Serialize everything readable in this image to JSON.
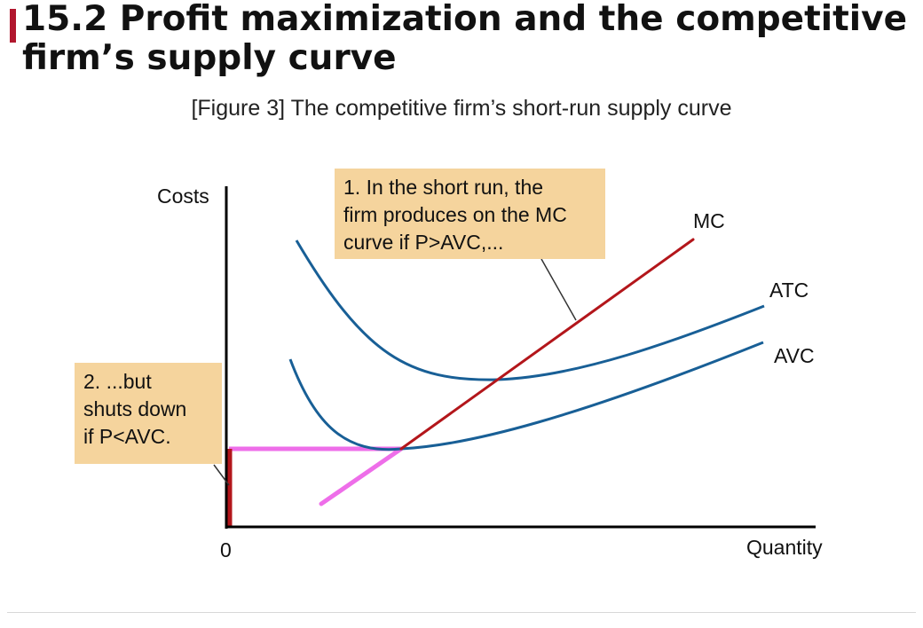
{
  "title": {
    "line1": "15.2 Profit maximization and the competitive",
    "line2": "firm’s supply curve"
  },
  "figure": {
    "caption": "[Figure 3] The competitive firm’s short-run supply curve",
    "y_axis_label": "Costs",
    "x_axis_label": "Quantity",
    "origin_label": "0",
    "curves": {
      "mc": "MC",
      "atc": "ATC",
      "avc": "AVC"
    },
    "callout1": {
      "line1": "1. In the short run, the",
      "line2": "firm produces on the MC",
      "line3": "curve if P>AVC,..."
    },
    "callout2": {
      "line1": "2. ...but",
      "line2": "shuts down",
      "line3": "if P<AVC."
    },
    "colors": {
      "accent": "#b1172e",
      "mc_curve": "#b3161b",
      "cost_curves": "#185f96",
      "supply_highlight": "#ee6ee9",
      "callout_fill": "#f5d49d",
      "axes": "#000000"
    }
  }
}
